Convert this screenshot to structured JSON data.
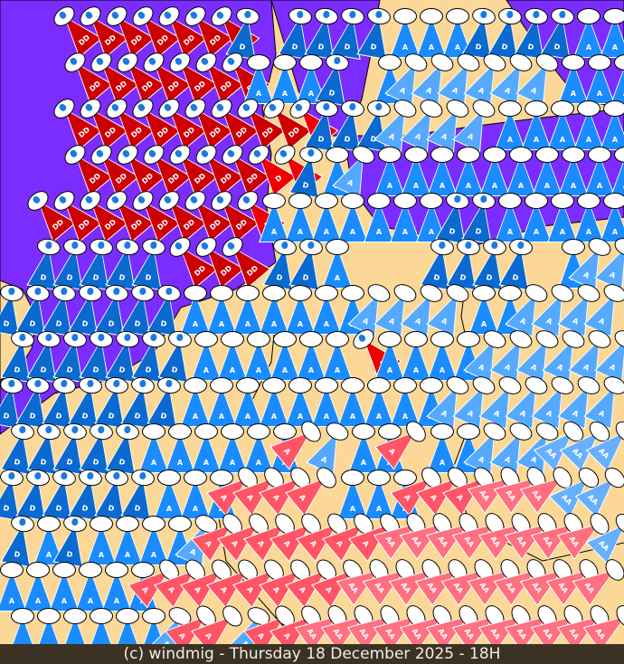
{
  "footer": {
    "credit": "(c) windmig - Thursday 18 December 2025 - 18H"
  },
  "colors": {
    "sea": "#7b2cff",
    "land": "#fcd898",
    "border": "#000000"
  },
  "codes": {
    "R": {
      "label": "DD",
      "color": "#cc0000",
      "angle": -40,
      "drop": true
    },
    "r": {
      "label": "D",
      "color": "#ee0000",
      "angle": -40,
      "drop": true
    },
    "B": {
      "label": "D",
      "color": "#0a6ad0",
      "angle": 10,
      "drop": true
    },
    "M": {
      "label": "A",
      "color": "#1a8cff",
      "angle": 0,
      "drop": false
    },
    "L": {
      "label": "A",
      "color": "#55aaff",
      "angle": 25,
      "drop": false
    },
    "N": {
      "label": "AA",
      "color": "#66b0ff",
      "angle": 45,
      "drop": false
    },
    "P": {
      "label": "A",
      "color": "#ff5566",
      "angle": 50,
      "drop": false
    },
    "p": {
      "label": "AA",
      "color": "#ff7080",
      "angle": 55,
      "drop": false
    }
  },
  "grid": [
    "..RRRRRRRB.BBBBMMMBBBBMM",
    "..RRRRRRRMMMB.MLLLLLLMMM",
    "..RRRRRRRRRrBBBLLLLMMMMM",
    "..RRRRRRRrrBMLMMMMMMMMMM",
    ".RRRRRRRRrMMMMMMMBBMMMMM",
    ".BBBBBRRR.BBM...BBBB.MLL",
    "BBBBBBBMMMMMMMLLLLMMLLLL",
    "BBBBBBBMMMMMMrMMMMLLLLLL",
    "BBBBBBBMMMMMMMMMMLLLLLLL",
    "BBBBBMMMMMMPLMMPMMLLLNNN",
    "BBBBBBMMMPPPPMMMPPPpppNN",
    "BMBMMMMLPPPPPPPppppppppN",
    "MMMMMMPPPPPPPPpppppppppp",
    "MMMMMMLPPLPPpppppppppppp"
  ]
}
